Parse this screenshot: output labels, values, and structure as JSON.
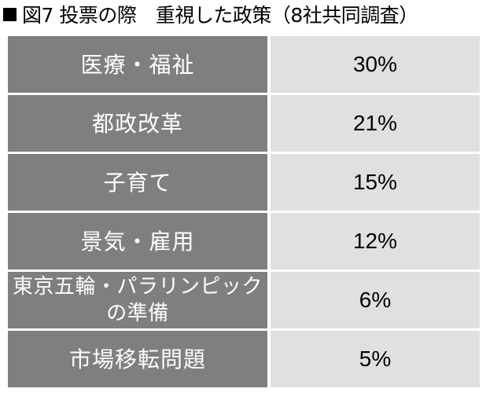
{
  "title": "図7 投票の際　重視した政策（8社共同調査）",
  "colors": {
    "label_background": "#7f7f7f",
    "value_background": "#e0e0e0",
    "label_text": "#ffffff",
    "value_text": "#000000"
  },
  "chart_data": {
    "type": "table",
    "title": "図7 投票の際　重視した政策（8社共同調査）",
    "categories": [
      "医療・福祉",
      "都政改革",
      "子育て",
      "景気・雇用",
      "東京五輪・パラリンピックの準備",
      "市場移転問題"
    ],
    "values": [
      30,
      21,
      15,
      12,
      6,
      5
    ],
    "value_labels": [
      "30%",
      "21%",
      "15%",
      "12%",
      "6%",
      "5%"
    ],
    "rows": [
      {
        "label": "医療・福祉",
        "value": "30%"
      },
      {
        "label": "都政改革",
        "value": "21%"
      },
      {
        "label": "子育て",
        "value": "15%"
      },
      {
        "label": "景気・雇用",
        "value": "12%"
      },
      {
        "label": "東京五輪・パラリンピックの準備",
        "value": "6%"
      },
      {
        "label": "市場移転問題",
        "value": "5%"
      }
    ]
  }
}
